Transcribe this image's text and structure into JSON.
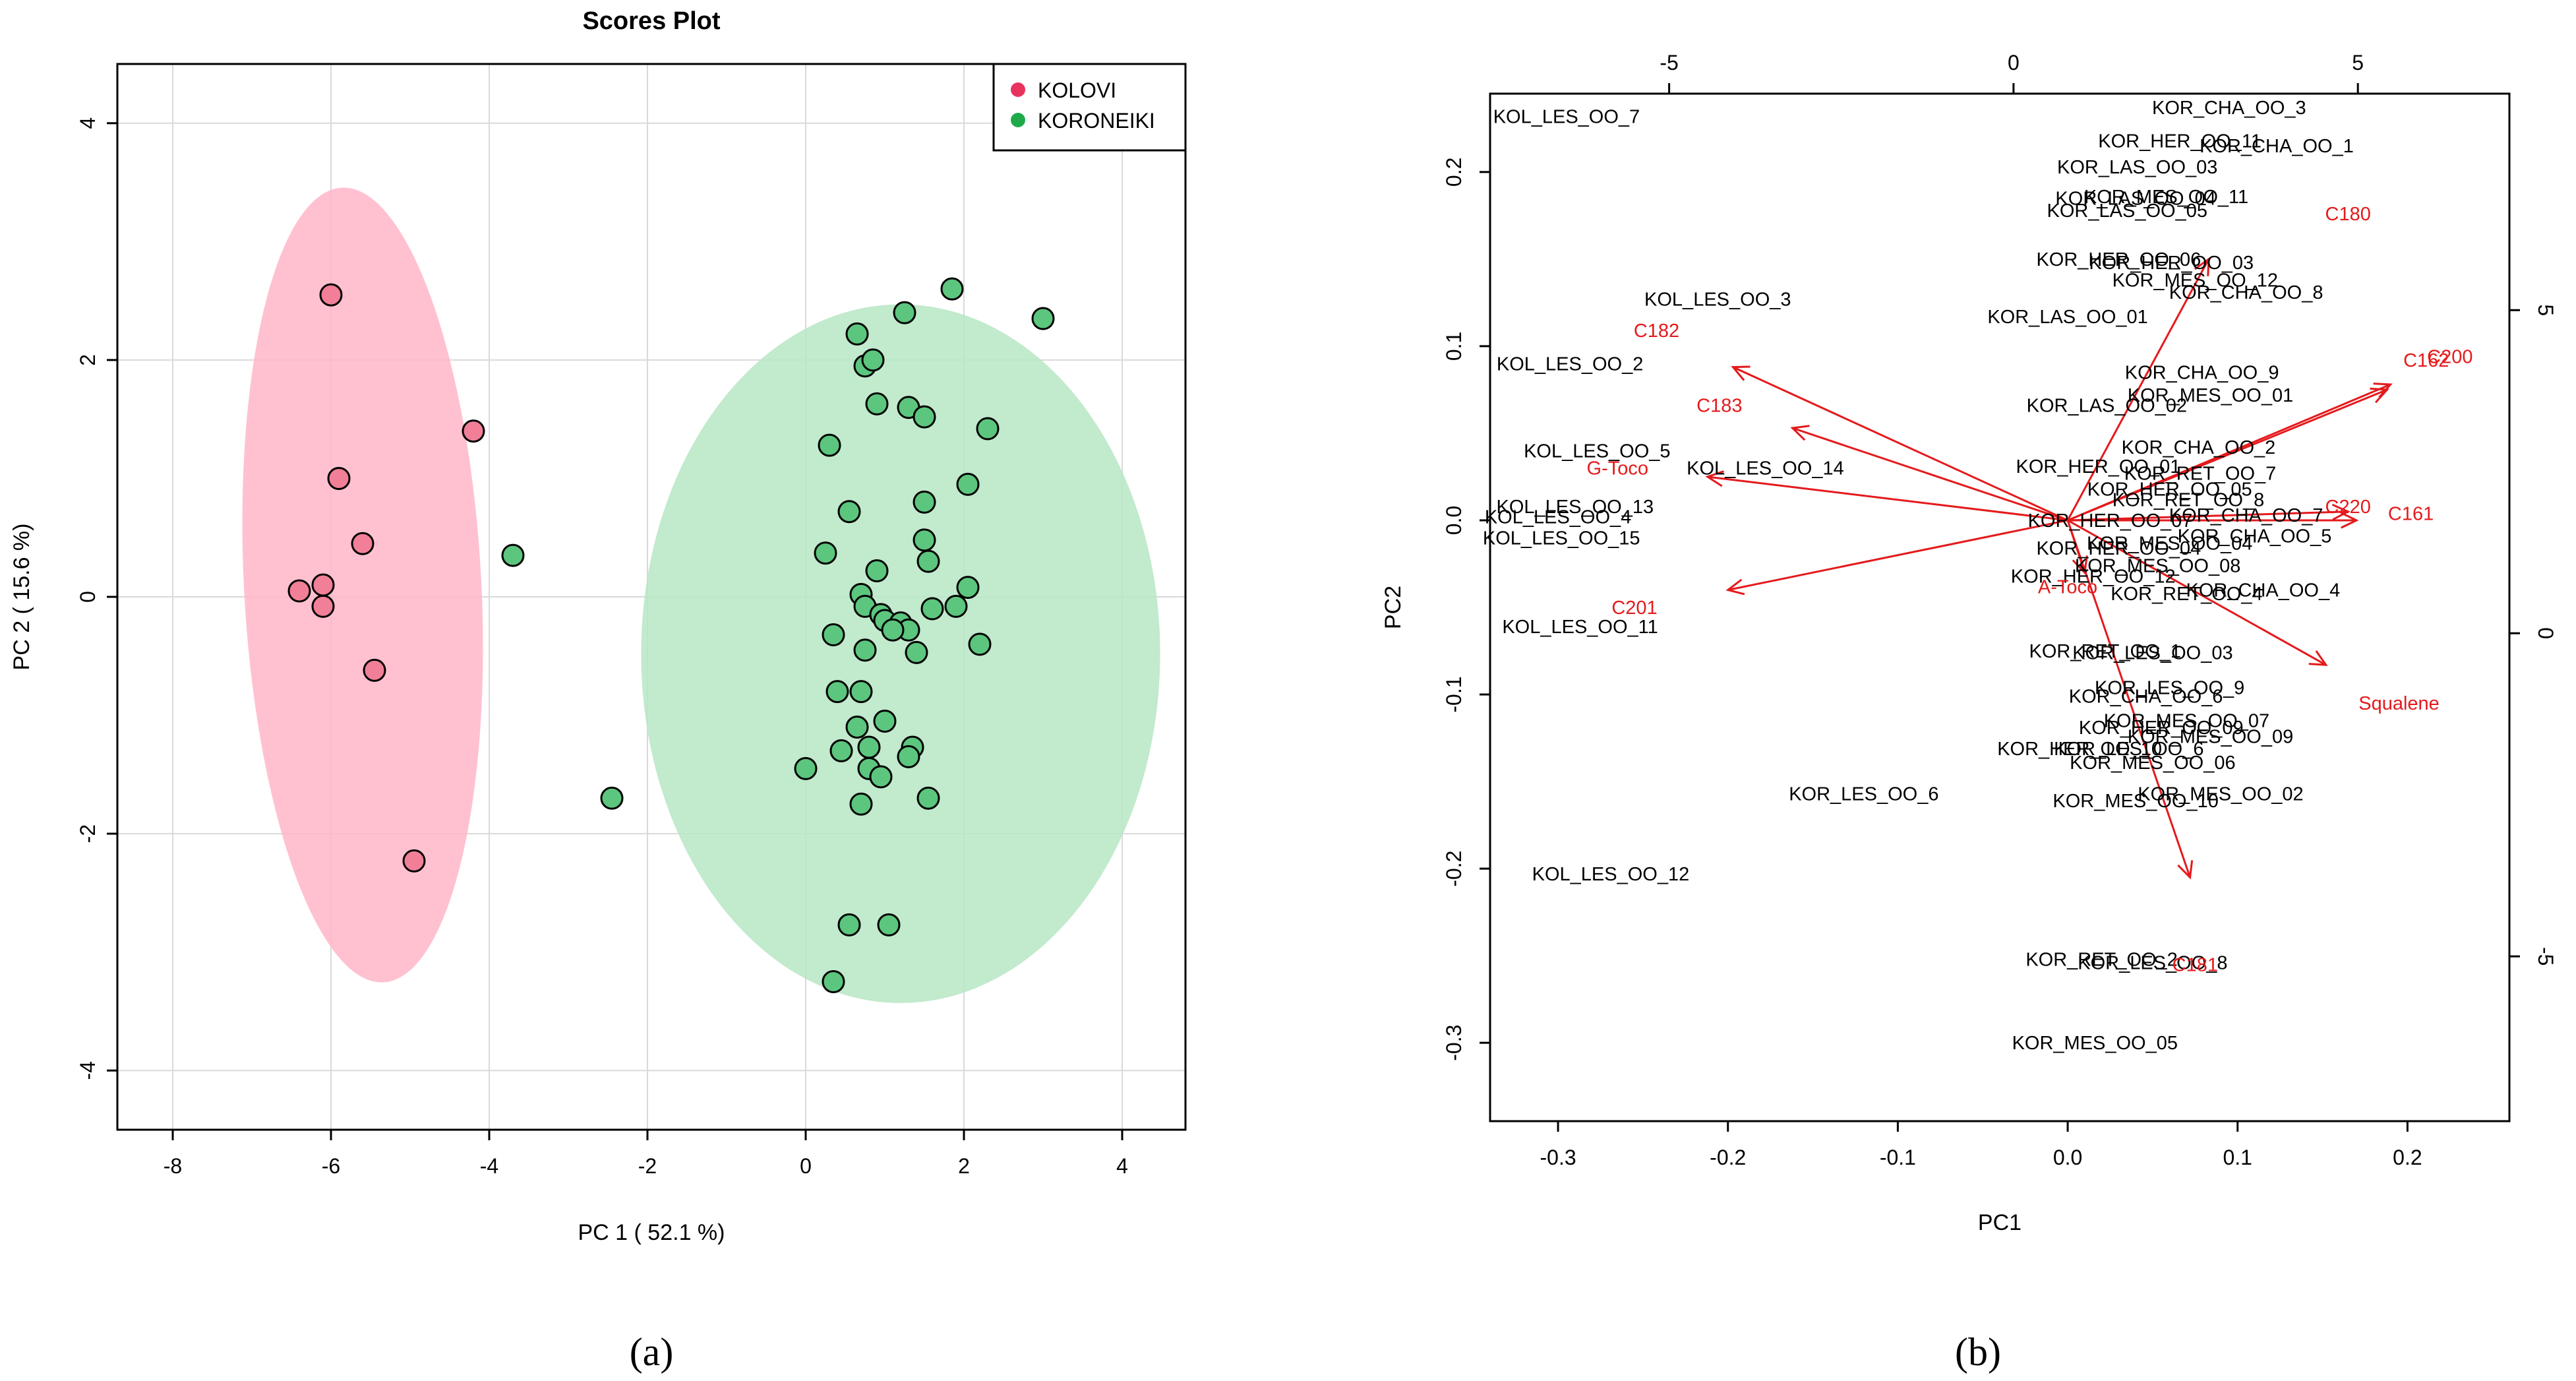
{
  "panel_a": {
    "caption": "(a)"
  },
  "panel_b": {
    "caption": "(b)"
  },
  "chart_data": [
    {
      "type": "scatter",
      "title": "Scores Plot",
      "xlabel": "PC 1 ( 52.1 %)",
      "ylabel": "PC 2 ( 15.6 %)",
      "xlim": [
        -8.7,
        4.8
      ],
      "ylim": [
        -4.5,
        4.5
      ],
      "xticks": [
        -8,
        -6,
        -4,
        -2,
        0,
        2,
        4
      ],
      "xtick_labels": [
        "-8",
        "-6",
        "-4",
        "-2",
        "0",
        "2",
        "4"
      ],
      "yticks": [
        -4,
        -2,
        0,
        2,
        4
      ],
      "ytick_labels": [
        "-4",
        "-2",
        "0",
        "2",
        "4"
      ],
      "grid": true,
      "legend_position": "top-right",
      "series": [
        {
          "name": "KOLOVI",
          "color": "#e8335f",
          "fill": "#f07f97",
          "ellipse_fill": "#ffb6c8",
          "ellipse": {
            "cx": -5.6,
            "cy": 0.1,
            "rx": 1.5,
            "ry": 3.36,
            "angle": -3
          },
          "points": [
            [
              -6.0,
              2.55
            ],
            [
              -5.9,
              1.0
            ],
            [
              -4.2,
              1.4
            ],
            [
              -5.6,
              0.45
            ],
            [
              -6.4,
              0.05
            ],
            [
              -6.1,
              0.1
            ],
            [
              -6.1,
              -0.08
            ],
            [
              -5.45,
              -0.62
            ],
            [
              -4.95,
              -2.23
            ]
          ]
        },
        {
          "name": "KORONEIKI",
          "color": "#1faa4a",
          "fill": "#5cc67e",
          "ellipse_fill": "#b7e6c4",
          "ellipse": {
            "cx": 1.2,
            "cy": -0.48,
            "rx": 3.28,
            "ry": 2.95,
            "angle": 0
          },
          "points": [
            [
              -3.7,
              0.35
            ],
            [
              -2.45,
              -1.7
            ],
            [
              0.65,
              2.22
            ],
            [
              0.75,
              1.95
            ],
            [
              0.85,
              2.0
            ],
            [
              1.25,
              2.4
            ],
            [
              1.85,
              2.6
            ],
            [
              3.0,
              2.35
            ],
            [
              0.9,
              1.63
            ],
            [
              1.3,
              1.6
            ],
            [
              1.5,
              1.52
            ],
            [
              2.3,
              1.42
            ],
            [
              0.3,
              1.28
            ],
            [
              2.05,
              0.95
            ],
            [
              1.5,
              0.8
            ],
            [
              0.55,
              0.72
            ],
            [
              1.5,
              0.48
            ],
            [
              0.25,
              0.37
            ],
            [
              1.55,
              0.3
            ],
            [
              0.9,
              0.22
            ],
            [
              2.05,
              0.08
            ],
            [
              0.7,
              0.02
            ],
            [
              0.75,
              -0.08
            ],
            [
              1.6,
              -0.1
            ],
            [
              1.9,
              -0.08
            ],
            [
              0.95,
              -0.15
            ],
            [
              1.0,
              -0.2
            ],
            [
              1.2,
              -0.22
            ],
            [
              1.3,
              -0.28
            ],
            [
              0.35,
              -0.32
            ],
            [
              1.1,
              -0.28
            ],
            [
              0.75,
              -0.45
            ],
            [
              2.2,
              -0.4
            ],
            [
              1.4,
              -0.47
            ],
            [
              0.4,
              -0.8
            ],
            [
              0.7,
              -0.8
            ],
            [
              1.0,
              -1.05
            ],
            [
              0.65,
              -1.1
            ],
            [
              0.8,
              -1.27
            ],
            [
              1.35,
              -1.27
            ],
            [
              0.45,
              -1.3
            ],
            [
              1.3,
              -1.35
            ],
            [
              0.0,
              -1.45
            ],
            [
              0.8,
              -1.45
            ],
            [
              0.95,
              -1.52
            ],
            [
              0.7,
              -1.75
            ],
            [
              1.55,
              -1.7
            ],
            [
              0.55,
              -2.77
            ],
            [
              1.05,
              -2.77
            ],
            [
              0.35,
              -3.25
            ]
          ]
        }
      ]
    },
    {
      "type": "scatter",
      "title": "",
      "xlabel": "PC1",
      "ylabel": "PC2",
      "xlim": [
        -0.34,
        0.26
      ],
      "ylim": [
        -0.345,
        0.245
      ],
      "xticks": [
        -0.3,
        -0.2,
        -0.1,
        0.0,
        0.1,
        0.2
      ],
      "xtick_labels": [
        "-0.3",
        "-0.2",
        "-0.1",
        "0.0",
        "0.1",
        "0.2"
      ],
      "yticks": [
        -0.3,
        -0.2,
        -0.1,
        0.0,
        0.1,
        0.2
      ],
      "ytick_labels": [
        "-0.3",
        "-0.2",
        "-0.1",
        "0.0",
        "0.1",
        "0.2"
      ],
      "top_axis": {
        "range": [
          -7.6,
          7.2
        ],
        "ticks": [
          -5,
          0,
          5
        ],
        "tick_labels": [
          "-5",
          "0",
          "5"
        ]
      },
      "right_axis": {
        "range": [
          -7.55,
          8.35
        ],
        "ticks": [
          -5,
          0,
          5
        ],
        "tick_labels": [
          "-5",
          "0",
          "5"
        ]
      },
      "grid": false,
      "samples": [
        {
          "label": "KOL_LES_OO_7",
          "x": -0.295,
          "y": 0.232
        },
        {
          "label": "KOR_CHA_OO_3",
          "x": 0.095,
          "y": 0.237
        },
        {
          "label": "KOR_HER_OO_11",
          "x": 0.066,
          "y": 0.218
        },
        {
          "label": "KOR_CHA_OO_1",
          "x": 0.123,
          "y": 0.215
        },
        {
          "label": "KOR_LAS_OO_03",
          "x": 0.041,
          "y": 0.203
        },
        {
          "label": "KOR_MES_OO_11",
          "x": 0.058,
          "y": 0.186
        },
        {
          "label": "KOR_LAS_OO_04",
          "x": 0.04,
          "y": 0.185
        },
        {
          "label": "KOR_LAS_OO_05",
          "x": 0.035,
          "y": 0.178
        },
        {
          "label": "KOR_HER_OO_06",
          "x": 0.03,
          "y": 0.15
        },
        {
          "label": "KOR_HER_OO_03",
          "x": 0.061,
          "y": 0.148
        },
        {
          "label": "KOR_MES_OO_12",
          "x": 0.075,
          "y": 0.138
        },
        {
          "label": "KOR_CHA_OO_8",
          "x": 0.105,
          "y": 0.131
        },
        {
          "label": "KOL_LES_OO_3",
          "x": -0.206,
          "y": 0.127
        },
        {
          "label": "KOR_LAS_OO_01",
          "x": 0.0,
          "y": 0.117
        },
        {
          "label": "KOL_LES_OO_2",
          "x": -0.293,
          "y": 0.09
        },
        {
          "label": "KOR_CHA_OO_9",
          "x": 0.079,
          "y": 0.085
        },
        {
          "label": "KOR_MES_OO_01",
          "x": 0.084,
          "y": 0.072
        },
        {
          "label": "KOR_LAS_OO_02",
          "x": 0.023,
          "y": 0.066
        },
        {
          "label": "KOL_LES_OO_5",
          "x": -0.277,
          "y": 0.04
        },
        {
          "label": "KOR_CHA_OO_2",
          "x": 0.077,
          "y": 0.042
        },
        {
          "label": "KOR_HER_OO_01",
          "x": 0.018,
          "y": 0.031
        },
        {
          "label": "KOR_RET_OO_7",
          "x": 0.078,
          "y": 0.027
        },
        {
          "label": "KOL_LES_OO_14",
          "x": -0.178,
          "y": 0.03
        },
        {
          "label": "KOR_HER_OO_05",
          "x": 0.06,
          "y": 0.018
        },
        {
          "label": "KOR_RET_OO_8",
          "x": 0.071,
          "y": 0.012
        },
        {
          "label": "KOL_LES_OO_13",
          "x": -0.29,
          "y": 0.008
        },
        {
          "label": "KOR_CHA_OO_7",
          "x": 0.105,
          "y": 0.003
        },
        {
          "label": "KOR_HER_OO_07",
          "x": 0.025,
          "y": 0.0
        },
        {
          "label": "KOL_LES_OO_4",
          "x": -0.3,
          "y": 0.002
        },
        {
          "label": "KOR_CHA_OO_5",
          "x": 0.11,
          "y": -0.009
        },
        {
          "label": "KOR_MES_OO_04",
          "x": 0.06,
          "y": -0.013
        },
        {
          "label": "KOL_LES_OO_15",
          "x": -0.298,
          "y": -0.01
        },
        {
          "label": "KOR_HER_OO_04",
          "x": 0.03,
          "y": -0.016
        },
        {
          "label": "KOR_MES_OO_08",
          "x": 0.053,
          "y": -0.026
        },
        {
          "label": "KOR_HER_OO_12",
          "x": 0.015,
          "y": -0.032
        },
        {
          "label": "KOR_CHA_OO_4",
          "x": 0.115,
          "y": -0.04
        },
        {
          "label": "KOR_RET_OO_4",
          "x": 0.07,
          "y": -0.042
        },
        {
          "label": "KOL_LES_OO_11",
          "x": -0.287,
          "y": -0.061
        },
        {
          "label": "KOR_RET_OO_1",
          "x": 0.022,
          "y": -0.075
        },
        {
          "label": "KOR_LES_OO_03",
          "x": 0.05,
          "y": -0.076
        },
        {
          "label": "KOR_LES_OO_9",
          "x": 0.06,
          "y": -0.096
        },
        {
          "label": "KOR_CHA_OO_6",
          "x": 0.046,
          "y": -0.101
        },
        {
          "label": "KOR_MES_OO_07",
          "x": 0.07,
          "y": -0.115
        },
        {
          "label": "KOR_HER_OO_09",
          "x": 0.055,
          "y": -0.119
        },
        {
          "label": "KOR_MES_OO_09",
          "x": 0.084,
          "y": -0.124
        },
        {
          "label": "KOR_LES_OO_6",
          "x": 0.036,
          "y": -0.131
        },
        {
          "label": "KOR_HER_OO_10",
          "x": 0.007,
          "y": -0.131
        },
        {
          "label": "KOR_MES_OO_06",
          "x": 0.05,
          "y": -0.139
        },
        {
          "label": "KOR_LES_OO_6",
          "x": -0.12,
          "y": -0.157
        },
        {
          "label": "KOR_MES_OO_02",
          "x": 0.09,
          "y": -0.157
        },
        {
          "label": "KOR_MES_OO_10",
          "x": 0.04,
          "y": -0.161
        },
        {
          "label": "KOL_LES_OO_12",
          "x": -0.269,
          "y": -0.203
        },
        {
          "label": "KOR_RET_OO_2",
          "x": 0.02,
          "y": -0.252
        },
        {
          "label": "KOR_LES_OO_8",
          "x": 0.05,
          "y": -0.254
        },
        {
          "label": "KOR_MES_OO_05",
          "x": 0.016,
          "y": -0.3
        }
      ],
      "loadings": [
        {
          "label": "C180",
          "x": 0.083,
          "y": 0.15,
          "label_x": 0.165,
          "label_y": 0.176
        },
        {
          "label": "C182",
          "x": -0.197,
          "y": 0.088,
          "label_x": -0.242,
          "label_y": 0.109
        },
        {
          "label": "C162",
          "x": 0.188,
          "y": 0.075,
          "label_x": 0.211,
          "label_y": 0.092
        },
        {
          "label": "C200",
          "x": 0.19,
          "y": 0.078,
          "label_x": 0.225,
          "label_y": 0.094
        },
        {
          "label": "C183",
          "x": -0.162,
          "y": 0.053,
          "label_x": -0.205,
          "label_y": 0.066
        },
        {
          "label": "G-Toco",
          "x": -0.212,
          "y": 0.025,
          "label_x": -0.265,
          "label_y": 0.03
        },
        {
          "label": "C220",
          "x": 0.165,
          "y": 0.005,
          "label_x": 0.165,
          "label_y": 0.008
        },
        {
          "label": "C161",
          "x": 0.17,
          "y": 0.0,
          "label_x": 0.202,
          "label_y": 0.004
        },
        {
          "label": "C201",
          "x": -0.2,
          "y": -0.04,
          "label_x": -0.255,
          "label_y": -0.05
        },
        {
          "label": "A-Toco",
          "x": 0.01,
          "y": -0.03,
          "label_x": 0.0,
          "label_y": -0.038
        },
        {
          "label": "Squalene",
          "x": 0.152,
          "y": -0.083,
          "label_x": 0.195,
          "label_y": -0.105
        },
        {
          "label": "C181",
          "x": 0.072,
          "y": -0.205,
          "label_x": 0.075,
          "label_y": -0.255
        }
      ]
    }
  ]
}
